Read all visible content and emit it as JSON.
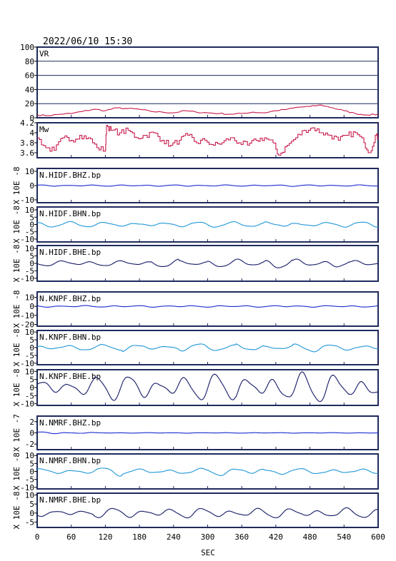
{
  "header": {
    "timestamp": "2022/06/10  15:30"
  },
  "x_axis": {
    "label": "SEC",
    "ticks": [
      0,
      60,
      120,
      180,
      240,
      300,
      360,
      420,
      480,
      540,
      600
    ],
    "range": [
      0,
      600
    ]
  },
  "colors": {
    "frame": "#1f2a5c",
    "vr": "#c8194a",
    "mw": "#c8194a",
    "bhz": "#1a2acf",
    "bhn": "#1e96d8",
    "bhe": "#141a66"
  },
  "chart_data": [
    {
      "type": "line",
      "label": "VR",
      "ylim": [
        0,
        100
      ],
      "yticks": [
        0,
        20,
        40,
        60,
        80,
        100
      ],
      "gridlines": [
        20,
        40,
        60,
        80
      ],
      "points": [
        [
          0,
          4
        ],
        [
          20,
          3
        ],
        [
          40,
          5
        ],
        [
          60,
          6
        ],
        [
          80,
          9
        ],
        [
          100,
          12
        ],
        [
          120,
          10
        ],
        [
          140,
          14
        ],
        [
          160,
          13
        ],
        [
          180,
          12
        ],
        [
          200,
          9
        ],
        [
          220,
          8
        ],
        [
          240,
          7
        ],
        [
          260,
          10
        ],
        [
          280,
          8
        ],
        [
          300,
          7
        ],
        [
          320,
          6
        ],
        [
          340,
          5
        ],
        [
          360,
          6
        ],
        [
          380,
          8
        ],
        [
          400,
          7
        ],
        [
          420,
          10
        ],
        [
          440,
          12
        ],
        [
          460,
          15
        ],
        [
          480,
          16
        ],
        [
          500,
          18
        ],
        [
          520,
          14
        ],
        [
          540,
          10
        ],
        [
          560,
          6
        ],
        [
          580,
          4
        ],
        [
          600,
          5
        ]
      ]
    },
    {
      "type": "line",
      "label": "Mw",
      "ylim": [
        3.5,
        4.2
      ],
      "yticks": [
        3.6,
        3.8,
        4.0,
        4.2
      ],
      "points": [
        [
          0,
          3.9
        ],
        [
          15,
          3.7
        ],
        [
          30,
          3.65
        ],
        [
          45,
          3.9
        ],
        [
          60,
          3.85
        ],
        [
          75,
          3.95
        ],
        [
          90,
          3.9
        ],
        [
          105,
          3.7
        ],
        [
          120,
          3.65
        ],
        [
          122,
          4.15
        ],
        [
          130,
          4.05
        ],
        [
          145,
          4.0
        ],
        [
          160,
          4.05
        ],
        [
          175,
          3.9
        ],
        [
          190,
          3.95
        ],
        [
          205,
          4.0
        ],
        [
          220,
          3.85
        ],
        [
          235,
          3.75
        ],
        [
          250,
          3.85
        ],
        [
          265,
          3.95
        ],
        [
          280,
          3.8
        ],
        [
          295,
          3.85
        ],
        [
          310,
          3.75
        ],
        [
          325,
          3.8
        ],
        [
          340,
          3.9
        ],
        [
          355,
          3.8
        ],
        [
          370,
          3.75
        ],
        [
          385,
          3.85
        ],
        [
          400,
          3.9
        ],
        [
          415,
          3.8
        ],
        [
          425,
          3.55
        ],
        [
          440,
          3.75
        ],
        [
          455,
          3.9
        ],
        [
          470,
          4.05
        ],
        [
          485,
          4.1
        ],
        [
          500,
          4.0
        ],
        [
          515,
          3.95
        ],
        [
          530,
          3.85
        ],
        [
          545,
          3.95
        ],
        [
          560,
          4.0
        ],
        [
          575,
          3.8
        ],
        [
          585,
          3.6
        ],
        [
          595,
          3.95
        ],
        [
          600,
          3.9
        ]
      ]
    },
    {
      "type": "line",
      "label": "N.HIDF.BHZ.bp",
      "ylabel": "X 10E -8",
      "ylim": [
        -12,
        12
      ],
      "yticks": [
        -10,
        0,
        10
      ],
      "amplitudes": [
        0.5,
        0.5,
        0.5,
        0.6,
        0.5,
        0.6,
        0.5,
        0.5,
        0.6,
        0.6,
        0.5,
        0.5
      ]
    },
    {
      "type": "line",
      "label": "N.HIDF.BHN.bp",
      "ylabel": "X 10E -8",
      "ylim": [
        -12,
        12
      ],
      "yticks": [
        -10,
        -5,
        0,
        5,
        10
      ],
      "amplitudes": [
        2,
        2,
        2,
        2,
        2,
        2,
        2,
        2,
        3,
        2,
        2,
        2
      ]
    },
    {
      "type": "line",
      "label": "N.HIDF.BHE.bp",
      "ylabel": "X 10E -8",
      "ylim": [
        -12,
        12
      ],
      "yticks": [
        -10,
        -5,
        0,
        5,
        10
      ],
      "amplitudes": [
        2,
        2,
        2,
        2,
        3,
        2,
        3,
        3,
        4,
        3,
        3,
        2
      ]
    },
    {
      "type": "line",
      "label": "N.KNPF.BHZ.bp",
      "ylabel": "X 10E -8",
      "ylim": [
        -22,
        16
      ],
      "yticks": [
        -20,
        -10,
        0,
        10
      ],
      "amplitudes": [
        1,
        1,
        1,
        1,
        1,
        1,
        1,
        1,
        1,
        1,
        1,
        1
      ]
    },
    {
      "type": "line",
      "label": "N.KNPF.BHN.bp",
      "ylabel": "X 10E -8",
      "ylim": [
        -11,
        11
      ],
      "yticks": [
        -10,
        -5,
        0,
        5,
        10
      ],
      "amplitudes": [
        2,
        2,
        2,
        3,
        2,
        3,
        2,
        3,
        2,
        3,
        2,
        2
      ]
    },
    {
      "type": "line",
      "label": "N.KNPF.BHE.bp",
      "ylabel": "X 10E -8",
      "ylim": [
        -11,
        11
      ],
      "yticks": [
        -10,
        -5,
        0,
        5,
        10
      ],
      "amplitudes": [
        6,
        7,
        8,
        9,
        9,
        9,
        9,
        10,
        10,
        10,
        10,
        9
      ]
    },
    {
      "type": "line",
      "label": "N.NMRF.BHZ.bp",
      "ylabel": "X 10E -7",
      "ylim": [
        -3,
        3
      ],
      "yticks": [
        -2,
        0,
        2
      ],
      "amplitudes": [
        0.2,
        0.1,
        0.05,
        0.05,
        0.05,
        0.05,
        0.05,
        0.05,
        0.05,
        0.05,
        0.05,
        0.05
      ]
    },
    {
      "type": "line",
      "label": "N.NMRF.BHN.bp",
      "ylabel": "X 10E -8",
      "ylim": [
        -11,
        11
      ],
      "yticks": [
        -10,
        -5,
        0,
        5,
        10
      ],
      "amplitudes": [
        2,
        2,
        3,
        2,
        2,
        2,
        3,
        3,
        2,
        2,
        2,
        2
      ]
    },
    {
      "type": "line",
      "label": "N.NMRF.BHE.bp",
      "ylabel": "X 10E -8",
      "ylim": [
        -8,
        11
      ],
      "yticks": [
        -5,
        0,
        5,
        10
      ],
      "amplitudes": [
        2,
        2,
        3,
        3,
        3,
        3,
        3,
        3,
        3,
        3,
        3,
        3
      ]
    }
  ]
}
